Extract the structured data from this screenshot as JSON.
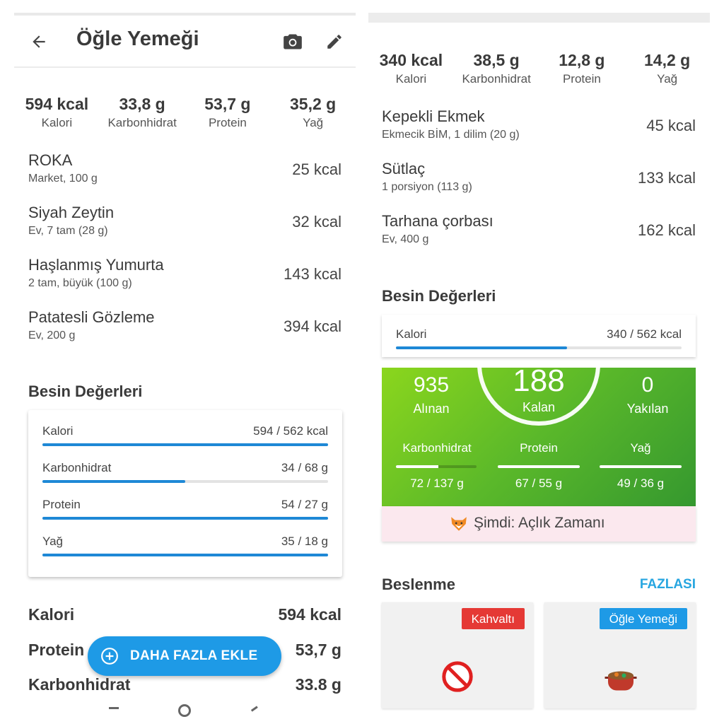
{
  "left": {
    "title": "Öğle Yemeği",
    "summary": [
      {
        "value": "594 kcal",
        "label": "Kalori"
      },
      {
        "value": "33,8 g",
        "label": "Karbonhidrat"
      },
      {
        "value": "53,7 g",
        "label": "Protein"
      },
      {
        "value": "35,2 g",
        "label": "Yağ"
      }
    ],
    "foods": [
      {
        "name": "ROKA",
        "detail": "Market, 100 g",
        "kcal": "25 kcal"
      },
      {
        "name": "Siyah Zeytin",
        "detail": "Ev, 7 tam (28 g)",
        "kcal": "32 kcal"
      },
      {
        "name": "Haşlanmış Yumurta",
        "detail": "2 tam, büyük (100 g)",
        "kcal": "143 kcal"
      },
      {
        "name": "Patatesli Gözleme",
        "detail": "Ev, 200 g",
        "kcal": "394 kcal"
      }
    ],
    "nutrition_title": "Besin Değerleri",
    "nutrition": [
      {
        "label": "Kalori",
        "value": "594 / 562 kcal",
        "progress": 1.0
      },
      {
        "label": "Karbonhidrat",
        "value": "34 / 68 g",
        "progress": 0.5
      },
      {
        "label": "Protein",
        "value": "54 / 27 g",
        "progress": 1.0
      },
      {
        "label": "Yağ",
        "value": "35 / 18 g",
        "progress": 1.0
      }
    ],
    "totals": [
      {
        "label": "Kalori",
        "value": "594 kcal"
      },
      {
        "label": "Protein",
        "value": "53,7 g"
      },
      {
        "label": "Karbonhidrat",
        "value": "33.8 g"
      }
    ],
    "fab_label": "DAHA FAZLA EKLE"
  },
  "right": {
    "summary": [
      {
        "value": "340 kcal",
        "label": "Kalori"
      },
      {
        "value": "38,5 g",
        "label": "Karbonhidrat"
      },
      {
        "value": "12,8 g",
        "label": "Protein"
      },
      {
        "value": "14,2 g",
        "label": "Yağ"
      }
    ],
    "foods": [
      {
        "name": "Kepekli Ekmek",
        "detail": "Ekmecik BİM, 1 dilim (20 g)",
        "kcal": "45 kcal"
      },
      {
        "name": "Sütlaç",
        "detail": "1 porsiyon (113 g)",
        "kcal": "133 kcal"
      },
      {
        "name": "Tarhana çorbası",
        "detail": "Ev, 400 g",
        "kcal": "162 kcal"
      }
    ],
    "nutrition_title": "Besin Değerleri",
    "nutrition": [
      {
        "label": "Kalori",
        "value": "340 / 562 kcal",
        "progress": 0.6
      }
    ],
    "dashboard": {
      "eaten": {
        "value": "935",
        "label": "Alınan"
      },
      "remaining": {
        "value": "188",
        "label": "Kalan"
      },
      "burned": {
        "value": "0",
        "label": "Yakılan"
      },
      "macros": [
        {
          "label": "Karbonhidrat",
          "value": "72 / 137 g",
          "progress": 0.53
        },
        {
          "label": "Protein",
          "value": "67 / 55 g",
          "progress": 1.0
        },
        {
          "label": "Yağ",
          "value": "49 / 36 g",
          "progress": 1.0
        }
      ]
    },
    "fasting_text": "Şimdi: Açlık Zamanı",
    "nutrition_section": "Beslenme",
    "more_link": "FAZLASI",
    "meals": [
      {
        "badge": "Kahvaltı",
        "badge_color": "#e53935",
        "icon": "prohibited-icon"
      },
      {
        "badge": "Öğle Yemeği",
        "badge_color": "#1e9ae6",
        "icon": "pot-of-food-icon"
      }
    ]
  },
  "colors": {
    "accent": "#1e88d6",
    "fab": "#1e9ae6",
    "link": "#27a6e0",
    "dashboard_green": "#5ab82a",
    "fasting_bg": "#fbe8ee"
  }
}
